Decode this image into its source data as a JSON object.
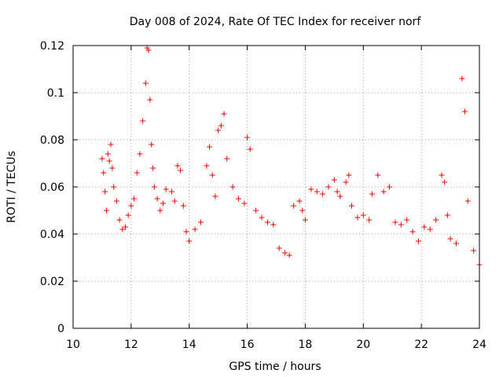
{
  "chart_data": {
    "type": "scatter",
    "title": "Day 008 of 2024, Rate Of TEC Index for receiver norf",
    "xlabel": "GPS time / hours",
    "ylabel": "ROTI / TECUs",
    "xlim": [
      10,
      24
    ],
    "ylim": [
      0,
      0.12
    ],
    "x_ticks": [
      10,
      12,
      14,
      16,
      18,
      20,
      22,
      24
    ],
    "x_tick_labels": [
      "10",
      "12",
      "14",
      "16",
      "18",
      "20",
      "22",
      "24"
    ],
    "y_ticks": [
      0,
      0.02,
      0.04,
      0.06,
      0.08,
      0.1,
      0.12
    ],
    "y_tick_labels": [
      "0",
      "0.02",
      "0.04",
      "0.06",
      "0.08",
      "0.1",
      "0.12"
    ],
    "grid": true,
    "marker": "+",
    "marker_color": "#ff0000",
    "series": [
      {
        "name": "ROTI",
        "x": [
          11.0,
          11.05,
          11.1,
          11.15,
          11.2,
          11.25,
          11.3,
          11.35,
          11.4,
          11.5,
          11.6,
          11.7,
          11.8,
          11.9,
          12.0,
          12.1,
          12.2,
          12.3,
          12.4,
          12.5,
          12.55,
          12.6,
          12.65,
          12.7,
          12.75,
          12.8,
          12.9,
          13.0,
          13.1,
          13.2,
          13.4,
          13.5,
          13.6,
          13.7,
          13.8,
          13.9,
          14.0,
          14.2,
          14.4,
          14.6,
          14.7,
          14.8,
          14.9,
          15.0,
          15.1,
          15.2,
          15.3,
          15.5,
          15.7,
          15.9,
          16.0,
          16.1,
          16.3,
          16.5,
          16.7,
          16.9,
          17.1,
          17.3,
          17.45,
          17.6,
          17.8,
          17.9,
          18.0,
          18.2,
          18.4,
          18.6,
          18.8,
          19.0,
          19.1,
          19.2,
          19.4,
          19.5,
          19.6,
          19.8,
          20.0,
          20.2,
          20.3,
          20.5,
          20.7,
          20.9,
          21.1,
          21.3,
          21.5,
          21.7,
          21.9,
          22.1,
          22.3,
          22.5,
          22.7,
          22.8,
          22.9,
          23.0,
          23.2,
          23.4,
          23.5,
          23.6,
          23.8,
          24.0
        ],
        "values": [
          0.072,
          0.066,
          0.058,
          0.05,
          0.074,
          0.071,
          0.078,
          0.068,
          0.06,
          0.054,
          0.046,
          0.042,
          0.043,
          0.048,
          0.052,
          0.055,
          0.066,
          0.074,
          0.088,
          0.104,
          0.119,
          0.118,
          0.097,
          0.078,
          0.068,
          0.06,
          0.055,
          0.05,
          0.053,
          0.059,
          0.058,
          0.054,
          0.069,
          0.067,
          0.052,
          0.041,
          0.037,
          0.042,
          0.045,
          0.069,
          0.077,
          0.065,
          0.056,
          0.084,
          0.086,
          0.091,
          0.072,
          0.06,
          0.055,
          0.053,
          0.081,
          0.076,
          0.05,
          0.047,
          0.045,
          0.044,
          0.034,
          0.032,
          0.031,
          0.052,
          0.054,
          0.05,
          0.046,
          0.059,
          0.058,
          0.057,
          0.06,
          0.063,
          0.058,
          0.056,
          0.062,
          0.065,
          0.052,
          0.047,
          0.048,
          0.046,
          0.057,
          0.065,
          0.058,
          0.06,
          0.045,
          0.044,
          0.046,
          0.041,
          0.037,
          0.043,
          0.042,
          0.046,
          0.065,
          0.062,
          0.048,
          0.038,
          0.036,
          0.106,
          0.092,
          0.054,
          0.033,
          0.027
        ]
      }
    ]
  }
}
